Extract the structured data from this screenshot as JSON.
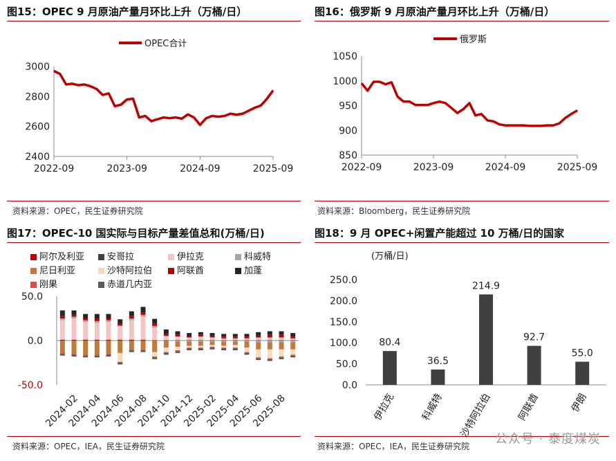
{
  "panels": {
    "p15": {
      "title": "图15：OPEC 9 月原油产量月环比上升（万桶/日）",
      "source": "资料来源：OPEC，民生证券研究院"
    },
    "p16": {
      "title": "图16：俄罗斯 9 月原油产量月环比上升（万桶/日）",
      "source": "资料来源：Bloomberg，民生证券研究院"
    },
    "p17": {
      "title": "图17：OPEC-10 国实际与目标产量差值总和(万桶/日)",
      "source": "资料来源：OPEC，IEA，民生证券研究院"
    },
    "p18": {
      "title": "图18：9 月 OPEC+闲置产能超过 10 万桶/日的国家",
      "source": "资料来源：OPEC，IEA，民生证券研究院"
    }
  },
  "watermark": "公众号 · 泰度煤炭",
  "chart_data": [
    {
      "id": "opec-production",
      "type": "line",
      "title": "图15：OPEC 9 月原油产量月环比上升（万桶/日）",
      "legend": "OPEC合计",
      "color": "#c00000",
      "y_ticks": [
        "2400",
        "2600",
        "2800",
        "3000"
      ],
      "x_ticks": [
        "2022-09",
        "2023-09",
        "2024-09",
        "2025-09"
      ],
      "ylim": [
        2400,
        3000
      ],
      "xlim": [
        0,
        36
      ],
      "x": [
        0,
        1,
        2,
        3,
        4,
        5,
        6,
        7,
        8,
        9,
        10,
        11,
        12,
        13,
        14,
        15,
        16,
        17,
        18,
        19,
        20,
        21,
        22,
        23,
        24,
        25,
        26,
        27,
        28,
        29,
        30,
        31,
        32,
        33,
        34,
        35,
        36
      ],
      "values": [
        2970,
        2950,
        2880,
        2885,
        2875,
        2880,
        2868,
        2850,
        2810,
        2820,
        2735,
        2745,
        2780,
        2785,
        2660,
        2670,
        2635,
        2648,
        2660,
        2655,
        2660,
        2652,
        2680,
        2660,
        2610,
        2655,
        2670,
        2665,
        2670,
        2685,
        2678,
        2685,
        2705,
        2725,
        2740,
        2785,
        2840
      ]
    },
    {
      "id": "russia-production",
      "type": "line",
      "title": "图16：俄罗斯 9 月原油产量月环比上升（万桶/日）",
      "legend": "俄罗斯",
      "color": "#c00000",
      "y_ticks": [
        "850",
        "900",
        "950",
        "1000",
        "1050"
      ],
      "x_ticks": [
        "2022-09",
        "2023-09",
        "2024-09",
        "2025-09"
      ],
      "ylim": [
        850,
        1050
      ],
      "xlim": [
        0,
        36
      ],
      "x": [
        0,
        1,
        2,
        3,
        4,
        5,
        6,
        7,
        8,
        9,
        10,
        11,
        12,
        13,
        14,
        15,
        16,
        17,
        18,
        19,
        20,
        21,
        22,
        23,
        24,
        25,
        26,
        27,
        28,
        29,
        30,
        31,
        32,
        33,
        34,
        35,
        36
      ],
      "values": [
        995,
        980,
        998,
        998,
        993,
        997,
        968,
        958,
        958,
        951,
        951,
        951,
        955,
        958,
        955,
        945,
        935,
        943,
        955,
        930,
        933,
        920,
        918,
        912,
        910,
        910,
        910,
        910,
        909,
        909,
        909,
        910,
        910,
        914,
        925,
        933,
        940
      ]
    },
    {
      "id": "opec10-gap",
      "type": "bar",
      "stacked": true,
      "title": "图17：OPEC-10 国实际与目标产量差值总和(万桶/日)",
      "y_ticks": [
        "50.0",
        "0.0",
        "-50.0"
      ],
      "ylim": [
        -50,
        50
      ],
      "x_ticks": [
        "2024-02",
        "2024-04",
        "2024-06",
        "2024-08",
        "2024-10",
        "2024-12",
        "2025-02",
        "2025-04",
        "2025-06",
        "2025-08"
      ],
      "categories": [
        "2024-01",
        "2024-02",
        "2024-03",
        "2024-04",
        "2024-05",
        "2024-06",
        "2024-07",
        "2024-08",
        "2024-09",
        "2024-10",
        "2024-11",
        "2024-12",
        "2025-01",
        "2025-02",
        "2025-03",
        "2025-04",
        "2025-05",
        "2025-06",
        "2025-07",
        "2025-08",
        "2025-09"
      ],
      "series": [
        {
          "name": "阿尔及利亚",
          "color": "#c00000",
          "values": [
            1,
            1,
            1,
            1,
            1,
            1,
            1,
            1,
            0.5,
            0.5,
            0.5,
            0.5,
            0.5,
            0.5,
            0.5,
            0.5,
            0.5,
            0.5,
            0.5,
            0.5,
            0.5
          ]
        },
        {
          "name": "安哥拉",
          "color": "#404040",
          "values": [
            0,
            0,
            0,
            0,
            0,
            0,
            0,
            0,
            0,
            0,
            0,
            0,
            0,
            0,
            0,
            0,
            0,
            0,
            0,
            0,
            0
          ]
        },
        {
          "name": "伊拉克",
          "color": "#f2c4c4",
          "values": [
            22,
            24,
            20,
            19,
            20,
            15,
            22,
            26,
            14,
            4,
            4,
            3,
            4,
            3,
            2,
            2,
            2,
            3,
            3,
            3,
            2
          ]
        },
        {
          "name": "科威特",
          "color": "#a6a6a6",
          "values": [
            2,
            2,
            2,
            2,
            2,
            1,
            2,
            2,
            2,
            1,
            -1,
            -1,
            -1,
            -1,
            -1,
            -1,
            -1,
            -2,
            -2,
            -2,
            -2
          ]
        },
        {
          "name": "尼日利亚",
          "color": "#c07a3a",
          "values": [
            -14,
            -15,
            -16,
            -16,
            -15,
            -14,
            -10,
            -10,
            -13,
            -8,
            -6,
            -5,
            -5,
            -4,
            -5,
            -4,
            -7,
            -8,
            -8,
            -8,
            -8
          ]
        },
        {
          "name": "沙特阿拉伯",
          "color": "#f2dcc0",
          "values": [
            0,
            0,
            0,
            0,
            0,
            -10,
            0,
            0,
            -5,
            -5,
            -4,
            -2,
            -2,
            -2,
            -2,
            -3,
            -5,
            -9,
            -10,
            -8,
            -6
          ]
        },
        {
          "name": "阿联酋",
          "color": "#c00000",
          "values": [
            3,
            2,
            2,
            3,
            2,
            2,
            3,
            3,
            3,
            2,
            2,
            2,
            2,
            2,
            2,
            2,
            2,
            2,
            3,
            3,
            2
          ]
        },
        {
          "name": "加蓬",
          "color": "#262626",
          "values": [
            6,
            5,
            5,
            5,
            5,
            5,
            5,
            6,
            5,
            5,
            4,
            3,
            3,
            3,
            3,
            3,
            3,
            4,
            4,
            4,
            4
          ]
        },
        {
          "name": "刚果",
          "color": "#d94c4c",
          "values": [
            -1,
            -1,
            -1,
            -1,
            -1,
            -1,
            -1,
            -1,
            -1,
            -1,
            -1,
            -1,
            -1,
            -1,
            -1,
            -1,
            -1,
            -1,
            -1,
            -1,
            -1
          ]
        },
        {
          "name": "赤道几内亚",
          "color": "#595959",
          "values": [
            -2,
            -2,
            -2,
            -2,
            -2,
            -2,
            -2,
            -2,
            -2,
            -2,
            -2,
            -2,
            -2,
            -2,
            -2,
            -2,
            -2,
            -2,
            -2,
            -2,
            -2
          ]
        }
      ]
    },
    {
      "id": "spare-capacity",
      "type": "bar",
      "title": "图18：9 月 OPEC+闲置产能超过 10 万桶/日的国家",
      "ylabel": "(万桶/日)",
      "y_ticks": [
        "0.0",
        "50.0",
        "100.0",
        "150.0",
        "200.0",
        "250.0"
      ],
      "ylim": [
        0,
        250
      ],
      "color": "#404040",
      "categories": [
        "伊拉克",
        "科威特",
        "沙特阿拉伯",
        "阿联酋",
        "伊朗"
      ],
      "values": [
        80.4,
        36.5,
        214.9,
        92.7,
        55.0
      ],
      "labels": [
        "80.4",
        "36.5",
        "214.9",
        "92.7",
        "55.0"
      ]
    }
  ]
}
